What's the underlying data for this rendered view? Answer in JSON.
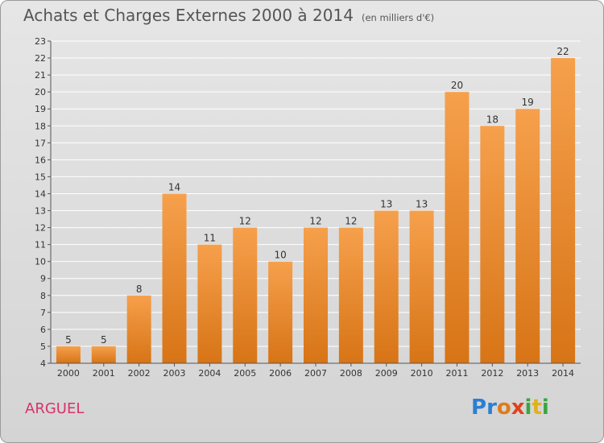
{
  "title": "Achats et Charges Externes 2000 à 2014",
  "subtitle": "(en milliers d'€)",
  "commune": "ARGUEL",
  "logo": {
    "letters": [
      "P",
      "r",
      "o",
      "x",
      "i",
      "t",
      "i"
    ],
    "colors": [
      "#2a7fd4",
      "#2a7fd4",
      "#e07b1a",
      "#e0421a",
      "#3aa640",
      "#e0b21a",
      "#3aa640"
    ]
  },
  "colors": {
    "bar_top": "#f6a04c",
    "bar_bottom": "#d77416",
    "grid": "#ffffff",
    "title": "#555555",
    "commune": "#d6336c"
  },
  "chart_data": {
    "type": "bar",
    "categories": [
      "2000",
      "2001",
      "2002",
      "2003",
      "2004",
      "2005",
      "2006",
      "2007",
      "2008",
      "2009",
      "2010",
      "2011",
      "2012",
      "2013",
      "2014"
    ],
    "values": [
      5,
      5,
      8,
      14,
      11,
      12,
      10,
      12,
      12,
      13,
      13,
      20,
      18,
      19,
      22
    ],
    "ylim": [
      4,
      23
    ],
    "yticks": [
      4,
      5,
      6,
      7,
      8,
      9,
      10,
      11,
      12,
      13,
      14,
      15,
      16,
      17,
      18,
      19,
      20,
      21,
      22,
      23
    ],
    "grid": true,
    "data_labels": true
  }
}
